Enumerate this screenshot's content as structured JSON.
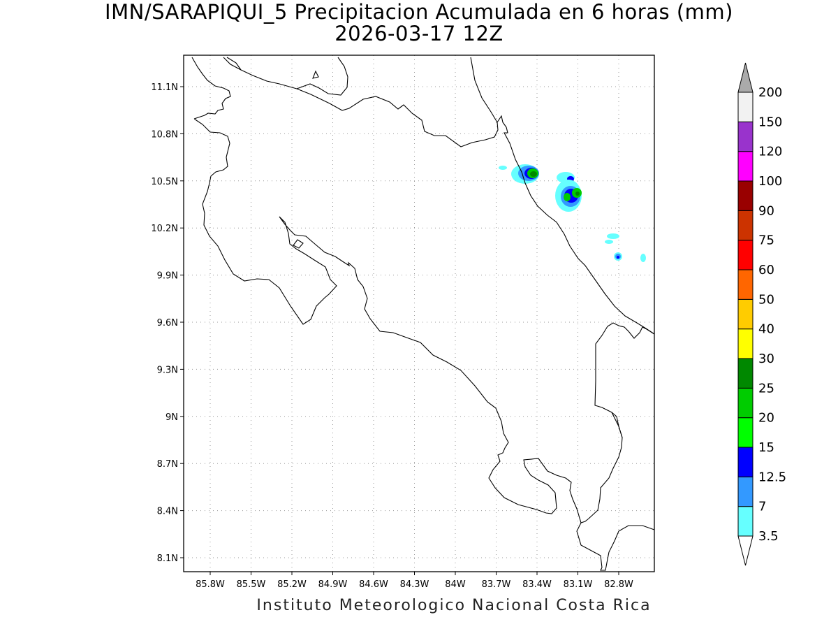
{
  "title": {
    "line1": "IMN/SARAPIQUI_5 Precipitacion Acumulada en 6 horas (mm)",
    "line2": "2026-03-17 12Z"
  },
  "footer": "Instituto Meteorologico Nacional Costa Rica",
  "map": {
    "lon_range": [
      -86.05,
      -82.45
    ],
    "lat_range": [
      8.05,
      11.3
    ],
    "lon_ticks": [
      "85.8W",
      "85.5W",
      "85.2W",
      "84.9W",
      "84.6W",
      "84.3W",
      "84W",
      "83.7W",
      "83.4W",
      "83.1W",
      "82.8W"
    ],
    "lat_ticks": [
      "11.1N",
      "10.8N",
      "10.5N",
      "10.2N",
      "9.9N",
      "9.6N",
      "9.3N",
      "9N",
      "8.7N",
      "8.4N",
      "8.1N"
    ],
    "grid": "dotted"
  },
  "colorbar": {
    "levels": [
      "3.5",
      "7",
      "12.5",
      "15",
      "20",
      "25",
      "30",
      "40",
      "50",
      "60",
      "75",
      "90",
      "100",
      "120",
      "150",
      "200"
    ],
    "colors": [
      "#66ffff",
      "#3399ff",
      "#0000ff",
      "#00ff00",
      "#00cc00",
      "#008800",
      "#ffff00",
      "#ffcc00",
      "#ff6600",
      "#ff0000",
      "#cc3300",
      "#990000",
      "#ff00ff",
      "#9933cc",
      "#f2f2f2",
      "#aaaaaa"
    ]
  }
}
